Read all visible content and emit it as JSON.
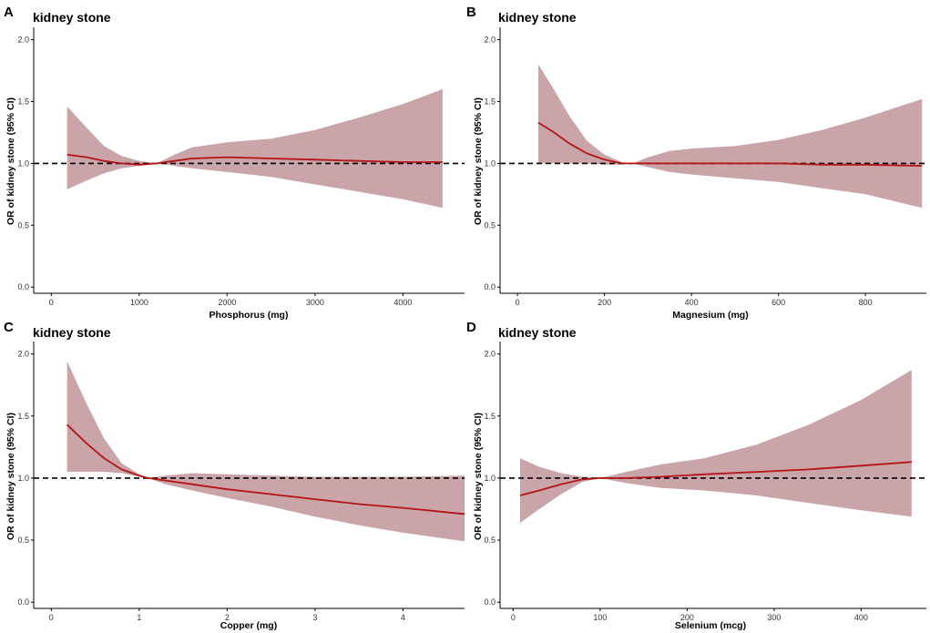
{
  "colors": {
    "ribbon": "#ba8a90",
    "curve": "#b51416",
    "reference": "#000000",
    "axis": "#000000"
  },
  "chart_data": [
    {
      "panel": "A",
      "type": "line",
      "title": "kidney stone",
      "xlabel": "Phosphorus (mg)",
      "ylabel": "OR of kidney stone (95% CI)",
      "xlim": [
        -200,
        4700
      ],
      "ylim": [
        -0.05,
        2.1
      ],
      "xticks": [
        0,
        1000,
        2000,
        3000,
        4000
      ],
      "xtick_labels": [
        "0",
        "1000",
        "2000",
        "3000",
        "4000"
      ],
      "yticks": [
        0.0,
        0.5,
        1.0,
        1.5,
        2.0
      ],
      "ytick_labels": [
        "0.0",
        "0.5",
        "1.0",
        "1.5",
        "2.0"
      ],
      "reference_line": 1.0,
      "x": [
        180,
        400,
        600,
        800,
        1000,
        1200,
        1400,
        1600,
        2000,
        2500,
        3000,
        3500,
        4000,
        4450
      ],
      "or": [
        1.07,
        1.05,
        1.02,
        1.0,
        0.99,
        1.0,
        1.02,
        1.04,
        1.05,
        1.04,
        1.03,
        1.02,
        1.01,
        1.01
      ],
      "lower": [
        0.79,
        0.86,
        0.92,
        0.96,
        0.98,
        1.0,
        0.98,
        0.96,
        0.93,
        0.89,
        0.83,
        0.77,
        0.71,
        0.64
      ],
      "upper": [
        1.46,
        1.29,
        1.14,
        1.06,
        1.02,
        1.0,
        1.07,
        1.13,
        1.17,
        1.2,
        1.27,
        1.37,
        1.48,
        1.6
      ]
    },
    {
      "panel": "B",
      "type": "line",
      "title": "kidney stone",
      "xlabel": "Magnesium (mg)",
      "ylabel": "OR of kidney stone (95% CI)",
      "xlim": [
        -40,
        940
      ],
      "ylim": [
        -0.05,
        2.1
      ],
      "xticks": [
        0,
        200,
        400,
        600,
        800
      ],
      "xtick_labels": [
        "0",
        "200",
        "400",
        "600",
        "800"
      ],
      "yticks": [
        0.0,
        0.5,
        1.0,
        1.5,
        2.0
      ],
      "ytick_labels": [
        "0.0",
        "0.5",
        "1.0",
        "1.5",
        "2.0"
      ],
      "reference_line": 1.0,
      "x": [
        48,
        80,
        120,
        160,
        200,
        240,
        265,
        300,
        350,
        400,
        500,
        600,
        700,
        800,
        930
      ],
      "or": [
        1.33,
        1.26,
        1.16,
        1.08,
        1.03,
        1.0,
        1.0,
        1.0,
        1.0,
        1.0,
        1.0,
        1.0,
        0.99,
        0.99,
        0.98
      ],
      "lower": [
        1.0,
        1.0,
        1.0,
        1.0,
        0.99,
        0.99,
        1.0,
        0.97,
        0.93,
        0.91,
        0.88,
        0.85,
        0.8,
        0.75,
        0.64
      ],
      "upper": [
        1.8,
        1.62,
        1.38,
        1.18,
        1.07,
        1.01,
        1.0,
        1.05,
        1.1,
        1.12,
        1.14,
        1.19,
        1.27,
        1.37,
        1.52
      ]
    },
    {
      "panel": "C",
      "type": "line",
      "title": "kidney stone",
      "xlabel": "Copper (mg)",
      "ylabel": "OR of kidney stone (95% CI)",
      "xlim": [
        -0.2,
        4.7
      ],
      "ylim": [
        -0.05,
        2.1
      ],
      "xticks": [
        0,
        1,
        2,
        3,
        4
      ],
      "xtick_labels": [
        "0",
        "1",
        "2",
        "3",
        "4"
      ],
      "yticks": [
        0.0,
        0.5,
        1.0,
        1.5,
        2.0
      ],
      "ytick_labels": [
        "0.0",
        "0.5",
        "1.0",
        "1.5",
        "2.0"
      ],
      "reference_line": 1.0,
      "x": [
        0.18,
        0.4,
        0.6,
        0.8,
        1.0,
        1.1,
        1.3,
        1.6,
        2.0,
        2.5,
        3.0,
        3.5,
        4.0,
        4.7
      ],
      "or": [
        1.43,
        1.28,
        1.16,
        1.07,
        1.02,
        1.0,
        0.98,
        0.95,
        0.91,
        0.87,
        0.83,
        0.79,
        0.76,
        0.71
      ],
      "lower": [
        1.05,
        1.05,
        1.05,
        1.04,
        1.01,
        1.0,
        0.95,
        0.9,
        0.84,
        0.77,
        0.69,
        0.62,
        0.56,
        0.49
      ],
      "upper": [
        1.94,
        1.6,
        1.32,
        1.12,
        1.03,
        1.0,
        1.02,
        1.04,
        1.03,
        1.02,
        1.01,
        1.01,
        1.01,
        1.02
      ]
    },
    {
      "panel": "D",
      "type": "line",
      "title": "kidney stone",
      "xlabel": "Selenium (mcg)",
      "ylabel": "OR of kidney stone (95% CI)",
      "xlim": [
        -15,
        475
      ],
      "ylim": [
        -0.05,
        2.1
      ],
      "xticks": [
        0,
        100,
        200,
        300,
        400
      ],
      "xtick_labels": [
        "0",
        "100",
        "200",
        "300",
        "400"
      ],
      "yticks": [
        0.0,
        0.5,
        1.0,
        1.5,
        2.0
      ],
      "ytick_labels": [
        "0.0",
        "0.5",
        "1.0",
        "1.5",
        "2.0"
      ],
      "reference_line": 1.0,
      "x": [
        8,
        30,
        55,
        80,
        100,
        130,
        170,
        220,
        280,
        340,
        400,
        458
      ],
      "or": [
        0.86,
        0.9,
        0.95,
        0.99,
        1.0,
        1.0,
        1.01,
        1.03,
        1.05,
        1.07,
        1.1,
        1.13
      ],
      "lower": [
        0.64,
        0.75,
        0.87,
        0.97,
        1.0,
        0.96,
        0.92,
        0.9,
        0.86,
        0.8,
        0.74,
        0.69
      ],
      "upper": [
        1.16,
        1.09,
        1.04,
        1.01,
        1.0,
        1.05,
        1.11,
        1.16,
        1.27,
        1.43,
        1.63,
        1.87
      ]
    }
  ]
}
